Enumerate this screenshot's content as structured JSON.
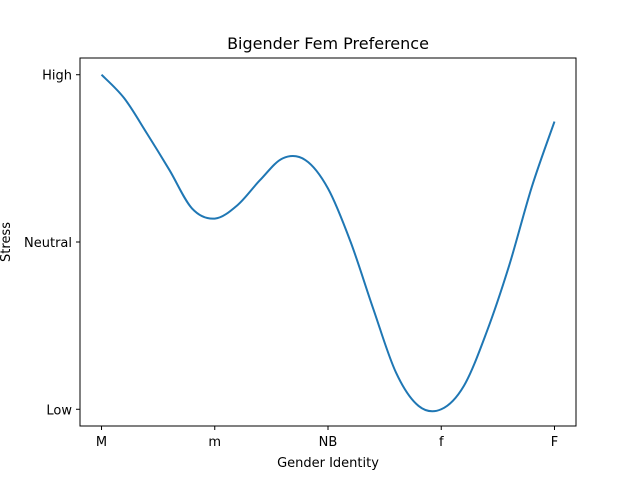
{
  "chart_data": {
    "type": "line",
    "title": "Bigender Fem Preference",
    "xlabel": "Gender Identity",
    "ylabel": "Stress",
    "categories": [
      "M",
      "m",
      "NB",
      "f",
      "F"
    ],
    "x": [
      0,
      1,
      2,
      3,
      4
    ],
    "xlim": [
      -0.19,
      4.19
    ],
    "y_tick_labels": [
      "Low",
      "Neutral",
      "High"
    ],
    "y_tick_values": [
      0,
      1,
      2
    ],
    "ylim": [
      -0.1,
      2.1
    ],
    "grid": false,
    "series": [
      {
        "color": "#1f77b4",
        "x": [
          0,
          0.2,
          0.4,
          0.6,
          0.8,
          1.0,
          1.2,
          1.4,
          1.6,
          1.8,
          2.0,
          2.2,
          2.4,
          2.6,
          2.8,
          3.0,
          3.2,
          3.4,
          3.6,
          3.8,
          4.0
        ],
        "y": [
          2.0,
          1.86,
          1.65,
          1.43,
          1.2,
          1.14,
          1.22,
          1.37,
          1.5,
          1.49,
          1.32,
          1.0,
          0.6,
          0.22,
          0.02,
          0.0,
          0.14,
          0.46,
          0.86,
          1.33,
          1.72
        ]
      }
    ]
  }
}
